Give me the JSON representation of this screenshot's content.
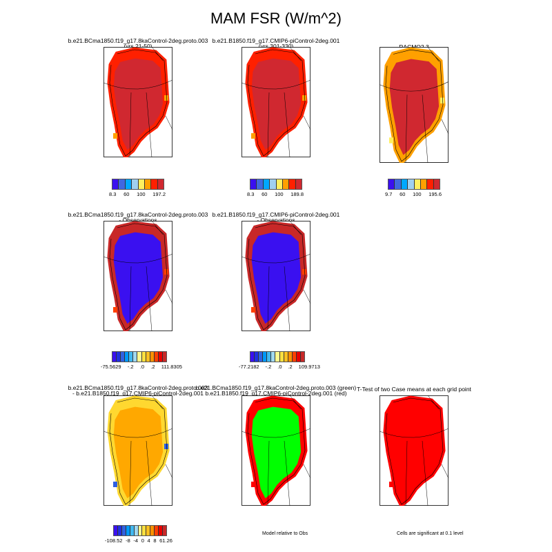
{
  "title": "MAM FSR (W/m^2)",
  "panels": [
    {
      "title1": "b.e21.BCma1850.f19_g17.8kaControl-2deg.proto.003",
      "title2": "(yrs 21-50)",
      "fill": "#d02830",
      "border": "#ff2000",
      "accent": "#ffa000"
    },
    {
      "title1": "b.e21.B1850.f19_g17.CMIP6-piControl-2deg.001",
      "title2": "(yrs 301-330)",
      "fill": "#d02830",
      "border": "#ff2000",
      "accent": "#ffa000"
    },
    {
      "title1": "RACMO2.3",
      "title2": "",
      "fill": "#d02830",
      "border": "#ffa000",
      "accent": "#fff060"
    },
    {
      "title1": "b.e21.BCma1850.f19_g17.8kaControl-2deg.proto.003",
      "title2": "- Observations",
      "fill": "#3a10f0",
      "border": "#c82828",
      "accent": "#ff4000"
    },
    {
      "title1": "b.e21.B1850.f19_g17.CMIP6-piControl-2deg.001",
      "title2": "- Observations",
      "fill": "#3a10f0",
      "border": "#c82828",
      "accent": "#ff4000"
    },
    {
      "title1": "b.e21.BCma1850.f19_g17.8kaControl-2deg.proto.003",
      "title2": "- b.e21.B1850.f19_g17.CMIP6-piControl-2deg.001",
      "fill": "#ffa800",
      "border": "#ffd830",
      "accent": "#3060e0"
    },
    {
      "title1": "b.e21.BCma1850.f19_g17.8kaControl-2deg.proto.003 (green)",
      "title2": "b.e21.B1850.f19_g17.CMIP6-piControl-2deg.001 (red)",
      "fill": "#00ff00",
      "border": "#ff0000",
      "accent": "#ff0000"
    },
    {
      "title1": "T-Test of two Case means at each grid point",
      "title2": "",
      "fill": "#ff0000",
      "border": "#ff0000",
      "accent": "#ff0000"
    }
  ],
  "colorbars": [
    {
      "colors": [
        "#3a10f0",
        "#4068e0",
        "#00a8ff",
        "#a0d0f0",
        "#fff060",
        "#ffa000",
        "#ff2000",
        "#d02830"
      ],
      "labels": [
        "8.3",
        "60",
        "100",
        "197.2"
      ]
    },
    {
      "colors": [
        "#3a10f0",
        "#4068e0",
        "#00a8ff",
        "#a0d0f0",
        "#fff060",
        "#ffa000",
        "#ff2000",
        "#d02830"
      ],
      "labels": [
        "8.3",
        "60",
        "100",
        "189.8"
      ]
    },
    {
      "colors": [
        "#3a10f0",
        "#4068e0",
        "#00a8ff",
        "#a0d0f0",
        "#fff060",
        "#ffa000",
        "#ff2000",
        "#d02830"
      ],
      "labels": [
        "9.7",
        "60",
        "100",
        "195.6"
      ]
    },
    {
      "colors": [
        "#3a10f0",
        "#2030e0",
        "#3060e0",
        "#0098f8",
        "#40b8f0",
        "#a0d8f0",
        "#fff890",
        "#ffe040",
        "#ffc020",
        "#ff9000",
        "#ff4000",
        "#e80000",
        "#c82828"
      ],
      "labels": [
        "-75.5629",
        "-.2",
        ".0",
        ".2",
        "111.8305"
      ]
    },
    {
      "colors": [
        "#3a10f0",
        "#2030e0",
        "#3060e0",
        "#0098f8",
        "#40b8f0",
        "#a0d8f0",
        "#fff890",
        "#ffe040",
        "#ffc020",
        "#ff9000",
        "#ff4000",
        "#e80000",
        "#c82828"
      ],
      "labels": [
        "-77.2182",
        "-.2",
        ".0",
        ".2",
        "109.9713"
      ]
    },
    {
      "colors": [
        "#3a10f0",
        "#2030e0",
        "#3060e0",
        "#0098f8",
        "#40b8f0",
        "#a0d8f0",
        "#fff890",
        "#ffe040",
        "#ffc020",
        "#ff9000",
        "#ff4000",
        "#e80000",
        "#c82828"
      ],
      "labels": [
        "-108.52",
        "-8",
        "-4",
        "0",
        "4",
        "8",
        "61.26"
      ]
    }
  ],
  "notes": {
    "model_relative": "Model relative to Obs",
    "significance": "Cells are significant at 0.1 level"
  }
}
